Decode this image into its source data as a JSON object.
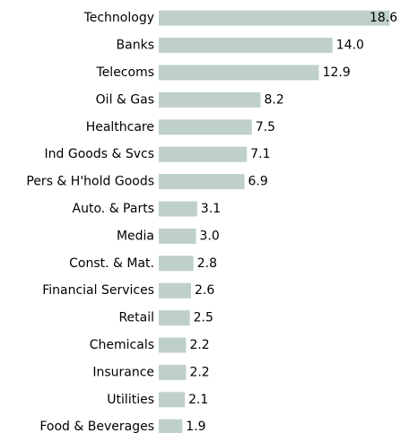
{
  "chart_data": {
    "type": "barh",
    "categories": [
      "Technology",
      "Banks",
      "Telecoms",
      "Oil & Gas",
      "Healthcare",
      "Ind Goods & Svcs",
      "Pers & H'hold Goods",
      "Auto. & Parts",
      "Media",
      "Const. & Mat.",
      "Financial Services",
      "Retail",
      "Chemicals",
      "Insurance",
      "Utilities",
      "Food & Beverages"
    ],
    "values": [
      18.6,
      14.0,
      12.9,
      8.2,
      7.5,
      7.1,
      6.9,
      3.1,
      3.0,
      2.8,
      2.6,
      2.5,
      2.2,
      2.2,
      2.1,
      1.9
    ],
    "value_labels": [
      "18.6",
      "14.0",
      "12.9",
      "8.2",
      "7.5",
      "7.1",
      "6.9",
      "3.1",
      "3.0",
      "2.8",
      "2.6",
      "2.5",
      "2.2",
      "2.2",
      "2.1",
      "1.9"
    ],
    "color": "#bfd0cb",
    "xlim": [
      0,
      19
    ]
  }
}
